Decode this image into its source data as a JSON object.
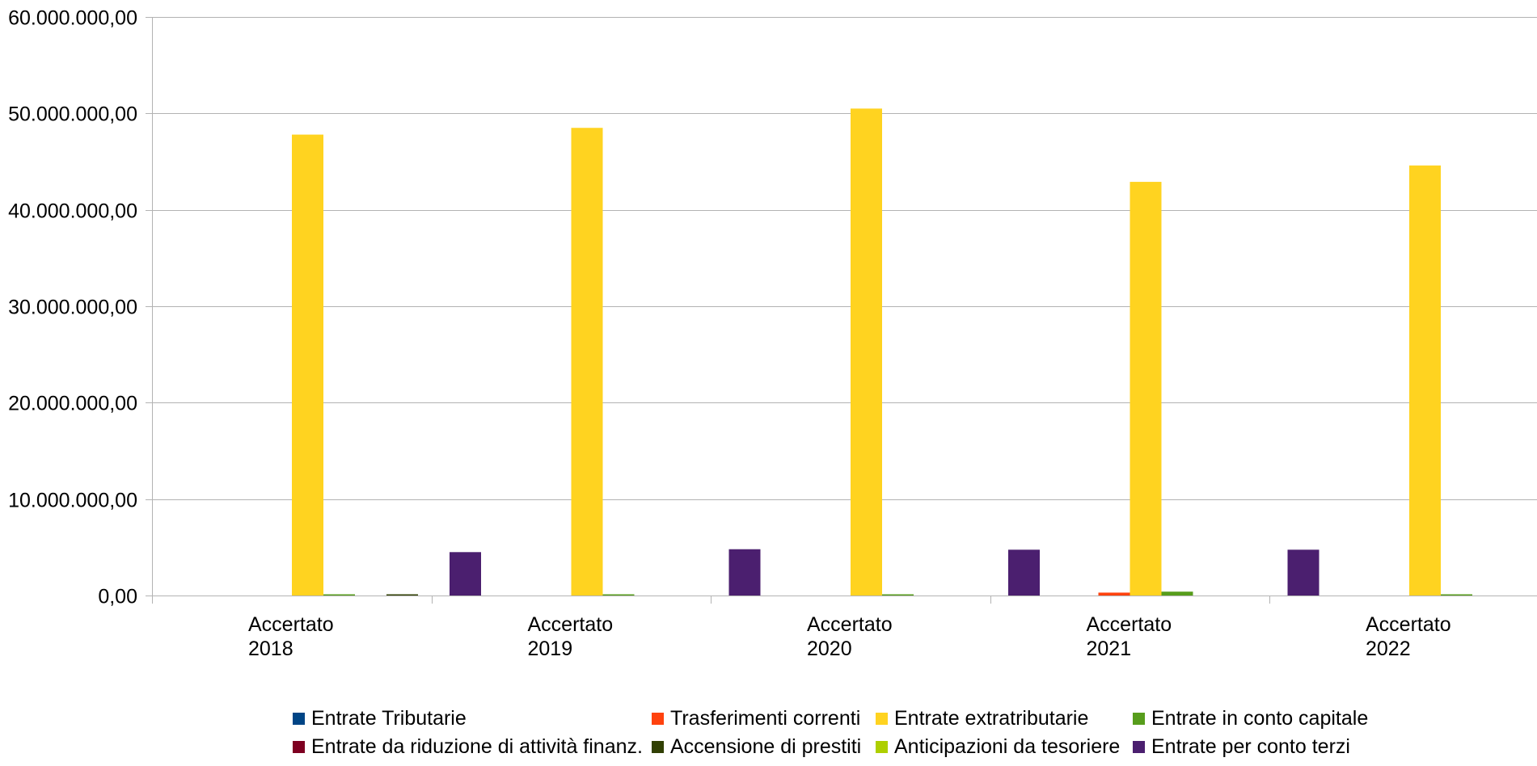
{
  "chart_data": {
    "type": "bar",
    "title": "",
    "xlabel": "",
    "ylabel": "",
    "ylim": [
      0,
      60000000
    ],
    "yticks": [
      0,
      10000000,
      20000000,
      30000000,
      40000000,
      50000000,
      60000000
    ],
    "ytick_labels": [
      "0,00",
      "10.000.000,00",
      "20.000.000,00",
      "30.000.000,00",
      "40.000.000,00",
      "50.000.000,00",
      "60.000.000,00"
    ],
    "grid": true,
    "legend_position": "bottom",
    "categories": [
      [
        "Accertato",
        "2018"
      ],
      [
        "Accertato",
        "2019"
      ],
      [
        "Accertato",
        "2020"
      ],
      [
        "Accertato",
        "2021"
      ],
      [
        "Accertato",
        "2022"
      ]
    ],
    "series": [
      {
        "name": "Entrate Tributarie",
        "color": "#004586",
        "values": [
          0,
          0,
          0,
          0,
          0
        ]
      },
      {
        "name": "Trasferimenti correnti",
        "color": "#ff420e",
        "values": [
          0,
          0,
          0,
          300000,
          0
        ]
      },
      {
        "name": "Entrate extratributarie",
        "color": "#ffd320",
        "values": [
          47800000,
          48500000,
          50500000,
          42900000,
          44600000
        ]
      },
      {
        "name": "Entrate in conto capitale",
        "color": "#579d1c",
        "values": [
          50000,
          50000,
          50000,
          400000,
          50000
        ]
      },
      {
        "name": "Entrate da riduzione di attività finanz.",
        "color": "#7e0021",
        "values": [
          0,
          0,
          0,
          0,
          0
        ]
      },
      {
        "name": "Accensione di prestiti",
        "color": "#314004",
        "values": [
          100000,
          0,
          0,
          0,
          0
        ]
      },
      {
        "name": "Anticipazioni da tesoriere",
        "color": "#aecf00",
        "values": [
          0,
          0,
          0,
          0,
          0
        ]
      },
      {
        "name": "Entrate per conto terzi",
        "color": "#4b1f6f",
        "values": [
          4500000,
          4800000,
          4750000,
          4750000,
          4600000
        ]
      }
    ]
  }
}
